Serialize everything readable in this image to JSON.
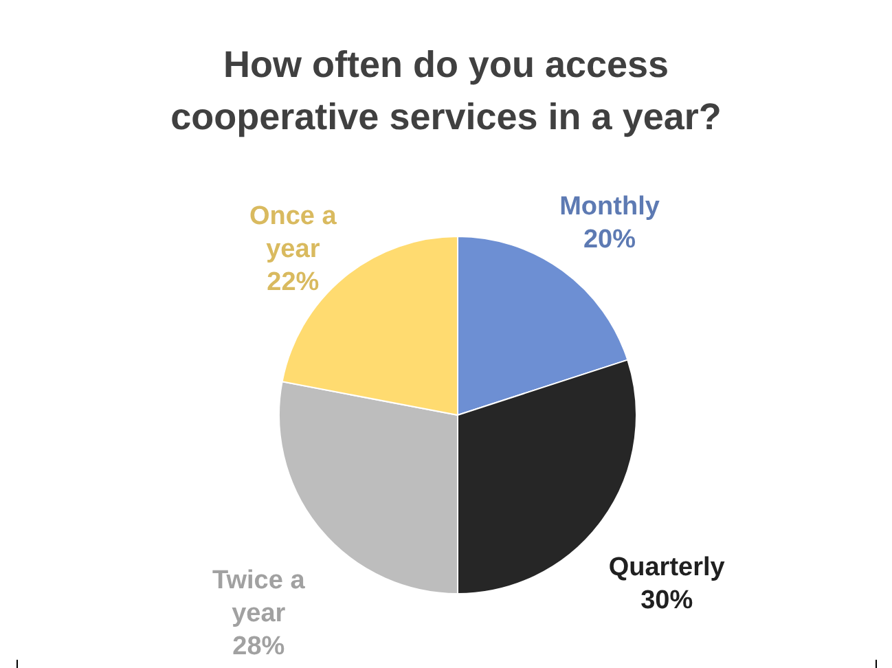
{
  "chart_data": {
    "type": "pie",
    "title": "How often do you access cooperative services in a year?",
    "categories": [
      "Monthly",
      "Quarterly",
      "Twice a year",
      "Once a year"
    ],
    "values": [
      20,
      30,
      28,
      22
    ],
    "colors": [
      "#6d8fd3",
      "#262626",
      "#bdbdbd",
      "#ffdb70"
    ],
    "value_labels": [
      "20%",
      "30%",
      "28%",
      "22%"
    ]
  }
}
